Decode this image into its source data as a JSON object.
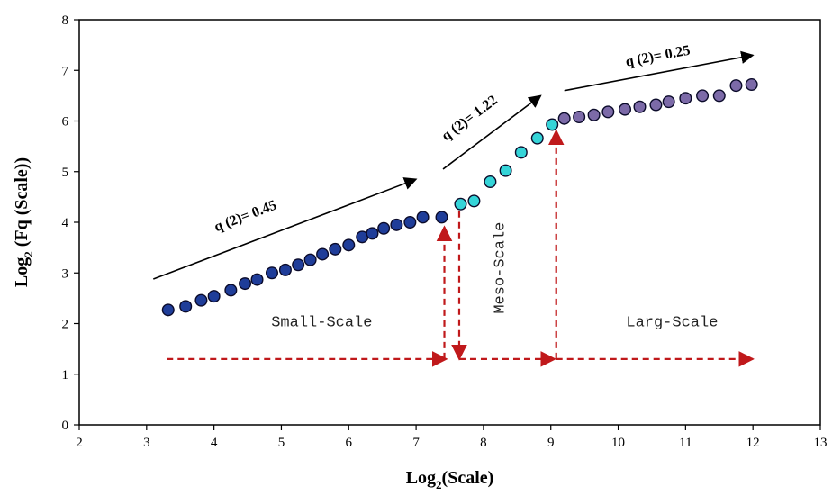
{
  "chart_data": {
    "type": "scatter",
    "xlabel": {
      "main": "Log",
      "sub": "2",
      "rest": "(Scale)"
    },
    "ylabel": {
      "main": "Log",
      "sub": "2",
      "rest": " (Fq (Scale))"
    },
    "xlim": [
      2,
      13
    ],
    "ylim": [
      0,
      8
    ],
    "xticks": [
      2,
      3,
      4,
      5,
      6,
      7,
      8,
      9,
      10,
      11,
      12,
      13
    ],
    "yticks": [
      0,
      1,
      2,
      3,
      4,
      5,
      6,
      7,
      8
    ],
    "grid": false,
    "series": [
      {
        "color": "#1f3d99",
        "x": [
          3.32,
          3.58,
          3.81,
          4.0,
          4.25,
          4.46,
          4.64,
          4.86,
          5.06,
          5.25,
          5.43,
          5.61,
          5.8,
          6.0,
          6.2,
          6.35,
          6.52,
          6.71,
          6.91,
          7.1,
          7.38
        ],
        "y": [
          2.27,
          2.34,
          2.46,
          2.54,
          2.66,
          2.79,
          2.87,
          3.0,
          3.06,
          3.16,
          3.26,
          3.37,
          3.47,
          3.55,
          3.71,
          3.78,
          3.88,
          3.95,
          4.0,
          4.1,
          4.1
        ]
      },
      {
        "color": "#35d4d8",
        "x": [
          7.66,
          7.86,
          8.1,
          8.33,
          8.56,
          8.8,
          9.02
        ],
        "y": [
          4.36,
          4.42,
          4.8,
          5.02,
          5.38,
          5.66,
          5.93
        ]
      },
      {
        "color": "#7c6aa8",
        "x": [
          9.2,
          9.42,
          9.64,
          9.85,
          10.1,
          10.32,
          10.56,
          10.75,
          11.0,
          11.25,
          11.5,
          11.75,
          11.98
        ],
        "y": [
          6.05,
          6.08,
          6.12,
          6.18,
          6.23,
          6.28,
          6.32,
          6.38,
          6.45,
          6.5,
          6.5,
          6.7,
          6.72
        ]
      }
    ],
    "trend_arrows": [
      {
        "label": "q (2)= 0.45",
        "from": [
          3.1,
          2.88
        ],
        "to": [
          7.0,
          4.85
        ]
      },
      {
        "label": "q (2)= 1.22",
        "from": [
          7.4,
          5.05
        ],
        "to": [
          8.85,
          6.5
        ]
      },
      {
        "label": "q (2)= 0.25",
        "from": [
          9.2,
          6.6
        ],
        "to": [
          12.0,
          7.3
        ]
      }
    ],
    "regions": [
      {
        "label": "Small-Scale",
        "x": 5.6,
        "y": 1.95,
        "orientation": "horizontal"
      },
      {
        "label": "Meso-Scale",
        "x": 8.3,
        "y": 3.1,
        "orientation": "vertical"
      },
      {
        "label": "Larg-Scale",
        "x": 10.8,
        "y": 1.95,
        "orientation": "horizontal"
      }
    ],
    "boundary_marker_color": "#c0191b",
    "boundaries": [
      {
        "x": 7.42,
        "y_top": 4.05,
        "direction": "up"
      },
      {
        "x": 7.64,
        "y_top": 4.36,
        "direction": "down"
      },
      {
        "x": 9.08,
        "y_top": 5.95,
        "direction": "up"
      }
    ],
    "horizontal_markers": [
      {
        "from": 3.3,
        "to": 7.45
      },
      {
        "from": 7.64,
        "to": 9.06
      },
      {
        "from": 9.08,
        "to": 12.0
      }
    ],
    "marker_y": 1.3
  }
}
